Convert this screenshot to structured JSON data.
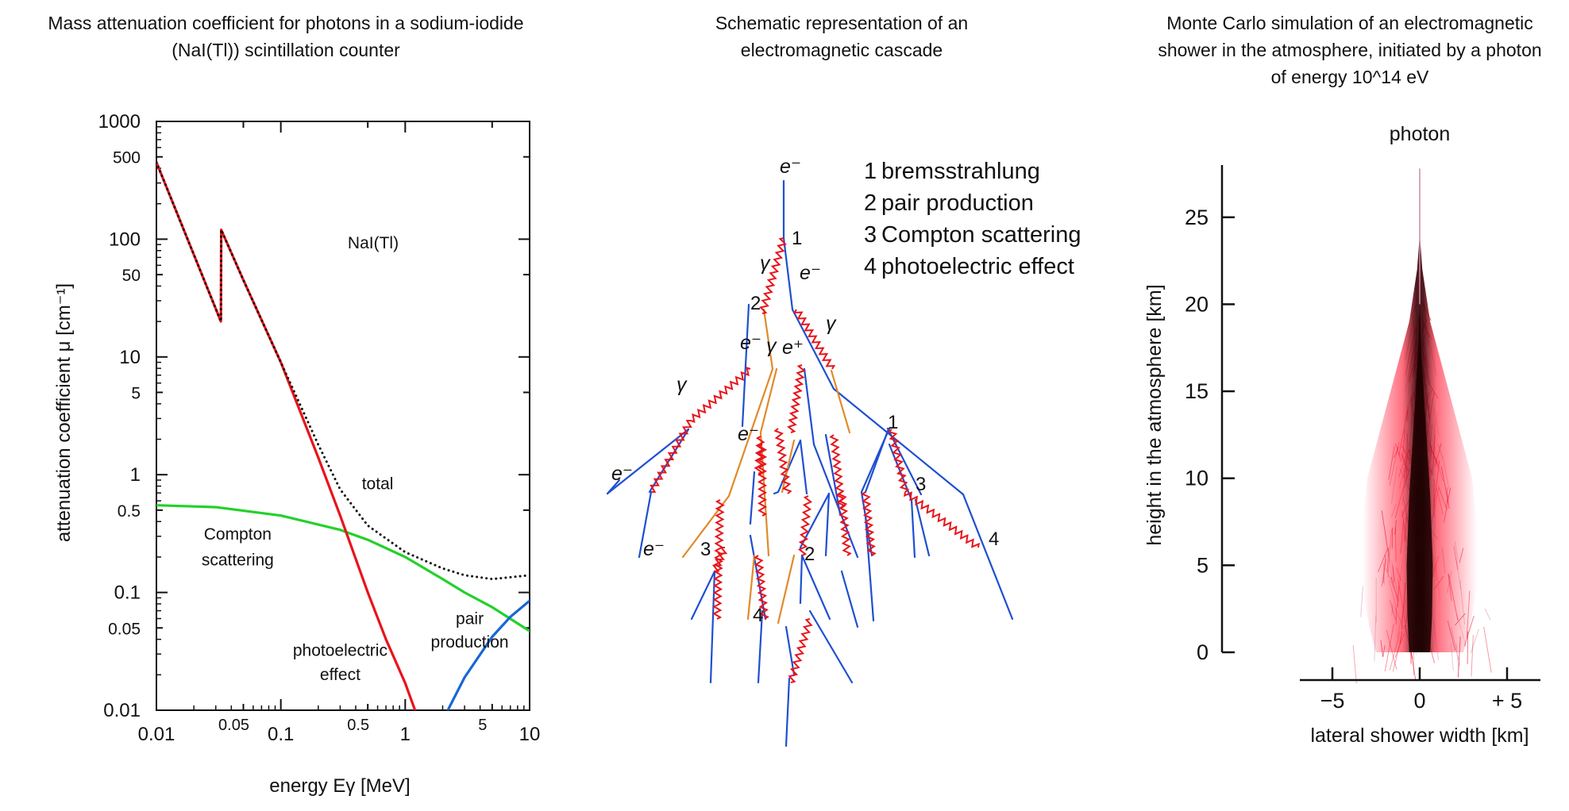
{
  "panels": [
    {
      "title": "Mass attenuation coefficient for photons in a sodium-iodide (NaI(Tl)) scintillation counter"
    },
    {
      "title": "Schematic representation of an electromagnetic cascade"
    },
    {
      "title": "Monte Carlo simulation of an electromagnetic shower in the atmosphere, initiated by a photon of energy 10^14 eV"
    }
  ],
  "chart_data": [
    {
      "type": "line",
      "x_scale": "log",
      "y_scale": "log",
      "xlim": [
        0.01,
        10
      ],
      "ylim": [
        0.01,
        1000
      ],
      "xlabel": "energy Eγ [MeV]",
      "ylabel": "attenuation coefficient μ [cm⁻¹]",
      "x_ticks": [
        {
          "value": 0.01,
          "label": "0.01",
          "major": true
        },
        {
          "value": 0.05,
          "label": "0.05",
          "major": false
        },
        {
          "value": 0.1,
          "label": "0.1",
          "major": true
        },
        {
          "value": 0.5,
          "label": "0.5",
          "major": false
        },
        {
          "value": 1,
          "label": "1",
          "major": true
        },
        {
          "value": 5,
          "label": "5",
          "major": false
        },
        {
          "value": 10,
          "label": "10",
          "major": true
        }
      ],
      "y_ticks": [
        {
          "value": 0.01,
          "label": "0.01",
          "major": true
        },
        {
          "value": 0.05,
          "label": "0.05",
          "major": false
        },
        {
          "value": 0.1,
          "label": "0.1",
          "major": true
        },
        {
          "value": 0.5,
          "label": "0.5",
          "major": false
        },
        {
          "value": 1,
          "label": "1",
          "major": true
        },
        {
          "value": 5,
          "label": "5",
          "major": false
        },
        {
          "value": 10,
          "label": "10",
          "major": true
        },
        {
          "value": 50,
          "label": "50",
          "major": false
        },
        {
          "value": 100,
          "label": "100",
          "major": true
        },
        {
          "value": 500,
          "label": "500",
          "major": false
        },
        {
          "value": 1000,
          "label": "1000",
          "major": true
        }
      ],
      "material_label": "NaI(Tl)",
      "series": [
        {
          "name": "total",
          "color": "#111111",
          "style": "dotted",
          "x": [
            0.01,
            0.033,
            0.0332,
            0.05,
            0.1,
            0.2,
            0.3,
            0.5,
            1,
            2,
            3,
            5,
            10
          ],
          "y": [
            450,
            20,
            120,
            45,
            9,
            1.8,
            0.75,
            0.37,
            0.22,
            0.16,
            0.14,
            0.13,
            0.14
          ]
        },
        {
          "name": "Compton scattering",
          "color": "#22d12a",
          "style": "solid",
          "x": [
            0.01,
            0.03,
            0.1,
            0.3,
            0.5,
            1,
            2,
            3,
            5,
            10
          ],
          "y": [
            0.55,
            0.53,
            0.45,
            0.34,
            0.28,
            0.2,
            0.13,
            0.1,
            0.075,
            0.047
          ]
        },
        {
          "name": "photoelectric effect",
          "color": "#e8141a",
          "style": "solid",
          "x": [
            0.01,
            0.033,
            0.0332,
            0.05,
            0.1,
            0.2,
            0.3,
            0.5,
            0.7,
            1,
            1.2
          ],
          "y": [
            450,
            20,
            120,
            45,
            9,
            1.4,
            0.45,
            0.1,
            0.04,
            0.017,
            0.01
          ]
        },
        {
          "name": "pair production",
          "color": "#1866d6",
          "style": "solid",
          "x": [
            2.2,
            3,
            5,
            7,
            10
          ],
          "y": [
            0.01,
            0.019,
            0.042,
            0.062,
            0.085
          ]
        }
      ],
      "annotations": [
        {
          "text": "total",
          "x": 0.6,
          "y": 0.75
        },
        {
          "text": "Compton",
          "x": 0.045,
          "y": 0.28
        },
        {
          "text": "scattering",
          "x": 0.045,
          "y": 0.17
        },
        {
          "text": "photoelectric",
          "x": 0.3,
          "y": 0.029
        },
        {
          "text": "effect",
          "x": 0.3,
          "y": 0.018
        },
        {
          "text": "pair",
          "x": 3.3,
          "y": 0.054
        },
        {
          "text": "production",
          "x": 3.3,
          "y": 0.034
        }
      ]
    },
    {
      "type": "scatter",
      "ylim": [
        0,
        28
      ],
      "xlim": [
        -7,
        7
      ],
      "xlabel": "lateral shower width [km]",
      "ylabel": "height in the atmosphere [km]",
      "y_ticks": [
        {
          "value": 0,
          "label": "0"
        },
        {
          "value": 5,
          "label": "5"
        },
        {
          "value": 10,
          "label": "10"
        },
        {
          "value": 15,
          "label": "15"
        },
        {
          "value": 20,
          "label": "20"
        },
        {
          "value": 25,
          "label": "25"
        }
      ],
      "x_ticks": [
        {
          "value": -5,
          "label": "−5"
        },
        {
          "value": 0,
          "label": "0"
        },
        {
          "value": 5,
          "label": "+ 5"
        }
      ],
      "primary_label": "photon",
      "colors": {
        "tracks": "#e8102a",
        "core": "#1a0000",
        "faint": "#cf8aa6"
      }
    }
  ],
  "cascade": {
    "legend": [
      {
        "number": "1",
        "label": "bremsstrahlung"
      },
      {
        "number": "2",
        "label": "pair production"
      },
      {
        "number": "3",
        "label": "Compton scattering"
      },
      {
        "number": "4",
        "label": "photoelectric effect"
      }
    ],
    "colors": {
      "electron": "#1f4fd1",
      "positron": "#e08a2a",
      "photon": "#e8141a"
    },
    "labels": [
      {
        "text": "e⁻"
      },
      {
        "text": "1"
      },
      {
        "text": "γ"
      },
      {
        "text": "e⁻"
      },
      {
        "text": "2"
      },
      {
        "text": "γ"
      },
      {
        "text": "e⁻"
      },
      {
        "text": "e⁺"
      },
      {
        "text": "γ"
      },
      {
        "text": "1"
      },
      {
        "text": "e⁻"
      },
      {
        "text": "e⁻"
      },
      {
        "text": "γ"
      },
      {
        "text": "e⁻"
      },
      {
        "text": "3"
      },
      {
        "text": "3"
      },
      {
        "text": "4"
      },
      {
        "text": "2"
      },
      {
        "text": "4"
      }
    ]
  }
}
